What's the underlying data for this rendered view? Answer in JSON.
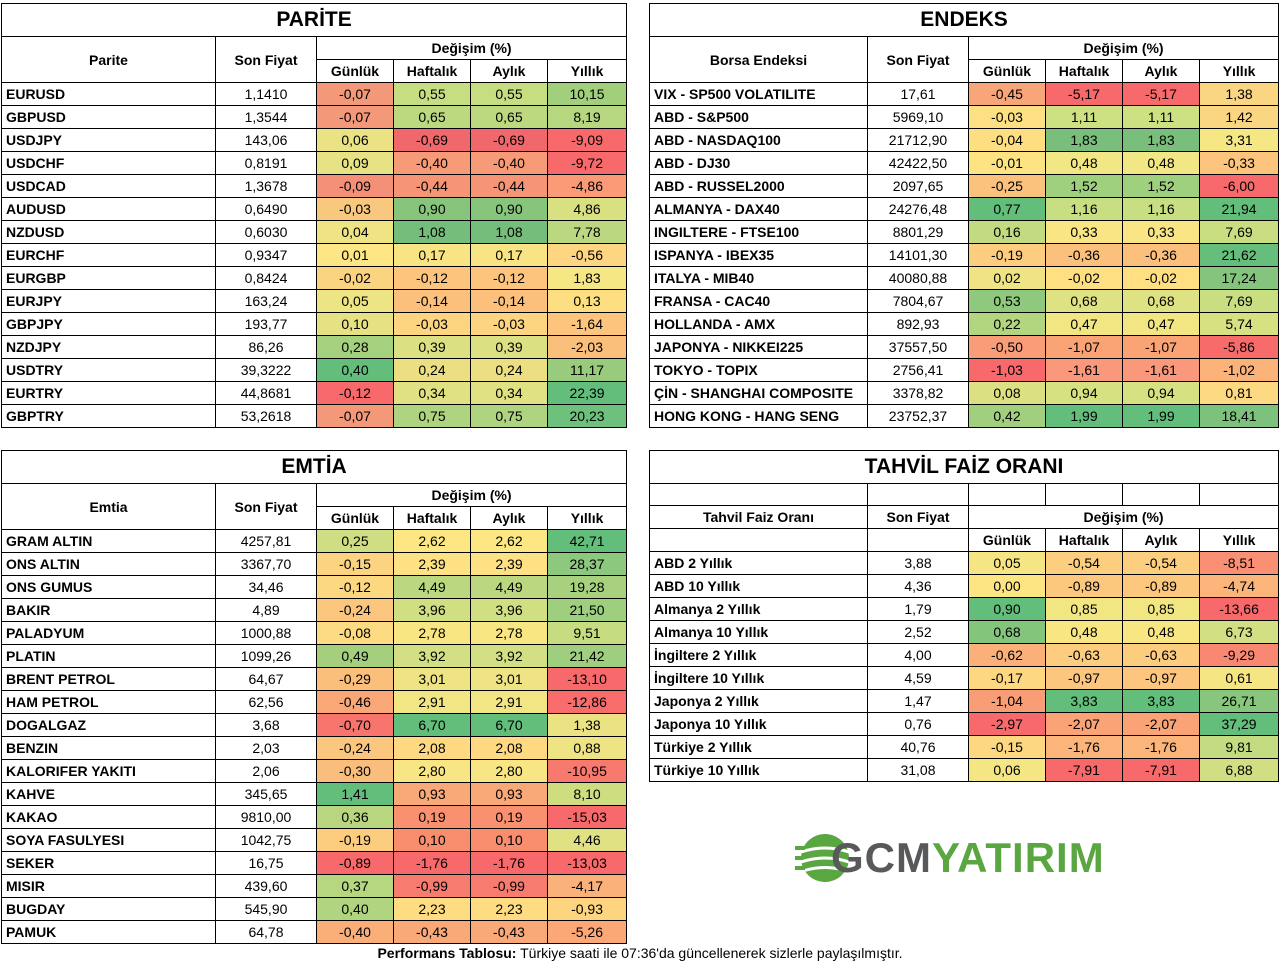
{
  "parite": {
    "title": "PARİTE",
    "col_name": "Parite",
    "col_price": "Son Fiyat",
    "col_change": "Değişim (%)",
    "periods": [
      "Günlük",
      "Haftalık",
      "Aylık",
      "Yıllık"
    ],
    "rows": [
      {
        "name": "EURUSD",
        "price": "1,1410",
        "d": "-0,07",
        "w": "0,55",
        "m": "0,55",
        "y": "10,15",
        "c": [
          "#f4987a",
          "#c7dd81",
          "#c7dd81",
          "#a2cf7b"
        ]
      },
      {
        "name": "GBPUSD",
        "price": "1,3544",
        "d": "-0,07",
        "w": "0,65",
        "m": "0,65",
        "y": "8,19",
        "c": [
          "#f4987a",
          "#bcd980",
          "#bcd980",
          "#b6d77f"
        ]
      },
      {
        "name": "USDJPY",
        "price": "143,06",
        "d": "0,06",
        "w": "-0,69",
        "m": "-0,69",
        "y": "-9,09",
        "c": [
          "#ebe383",
          "#f1686c",
          "#f1686c",
          "#f8696b"
        ]
      },
      {
        "name": "USDCHF",
        "price": "0,8191",
        "d": "0,09",
        "w": "-0,40",
        "m": "-0,40",
        "y": "-9,72",
        "c": [
          "#e7e283",
          "#f79a77",
          "#f79a77",
          "#f8696b"
        ]
      },
      {
        "name": "USDCAD",
        "price": "1,3678",
        "d": "-0,09",
        "w": "-0,44",
        "m": "-0,44",
        "y": "-4,86",
        "c": [
          "#f48f78",
          "#f69476",
          "#f69476",
          "#fa9a76"
        ]
      },
      {
        "name": "AUDUSD",
        "price": "0,6490",
        "d": "-0,03",
        "w": "0,90",
        "m": "0,90",
        "y": "4,86",
        "c": [
          "#f9c87f",
          "#88c57c",
          "#88c57c",
          "#d8e082"
        ]
      },
      {
        "name": "NZDUSD",
        "price": "0,6030",
        "d": "0,04",
        "w": "1,08",
        "m": "1,08",
        "y": "7,78",
        "c": [
          "#eee483",
          "#74bd7a",
          "#74bd7a",
          "#bbd880"
        ]
      },
      {
        "name": "EURCHF",
        "price": "0,9347",
        "d": "0,01",
        "w": "0,17",
        "m": "0,17",
        "y": "-0,56",
        "c": [
          "#fde784",
          "#f9e483",
          "#f9e483",
          "#fed580"
        ]
      },
      {
        "name": "EURGBP",
        "price": "0,8424",
        "d": "-0,02",
        "w": "-0,12",
        "m": "-0,12",
        "y": "1,83",
        "c": [
          "#fbd481",
          "#fcc47d",
          "#fcc47d",
          "#f5e783"
        ]
      },
      {
        "name": "EURJPY",
        "price": "163,24",
        "d": "0,05",
        "w": "-0,14",
        "m": "-0,14",
        "y": "0,13",
        "c": [
          "#ede483",
          "#fbc07c",
          "#fbc07c",
          "#fddf82"
        ]
      },
      {
        "name": "GBPJPY",
        "price": "193,77",
        "d": "0,10",
        "w": "-0,03",
        "m": "-0,03",
        "y": "-1,64",
        "c": [
          "#e6e283",
          "#fdd480",
          "#fdd480",
          "#fcc47d"
        ]
      },
      {
        "name": "NZDJPY",
        "price": "86,26",
        "d": "0,28",
        "w": "0,39",
        "m": "0,39",
        "y": "-2,03",
        "c": [
          "#a5d07e",
          "#dbe182",
          "#dbe182",
          "#fbbf7c"
        ]
      },
      {
        "name": "USDTRY",
        "price": "39,3222",
        "d": "0,40",
        "w": "0,24",
        "m": "0,24",
        "y": "11,17",
        "c": [
          "#63be7b",
          "#ecdf82",
          "#ecdf82",
          "#98cc7c"
        ]
      },
      {
        "name": "EURTRY",
        "price": "44,8681",
        "d": "-0,12",
        "w": "0,34",
        "m": "0,34",
        "y": "22,39",
        "c": [
          "#f8696b",
          "#e0e182",
          "#e0e182",
          "#63be7b"
        ]
      },
      {
        "name": "GBPTRY",
        "price": "53,2618",
        "d": "-0,07",
        "w": "0,75",
        "m": "0,75",
        "y": "20,23",
        "c": [
          "#f4987a",
          "#afd47f",
          "#afd47f",
          "#6dc17c"
        ]
      }
    ]
  },
  "endeks": {
    "title": "ENDEKS",
    "col_name": "Borsa Endeksi",
    "col_price": "Son Fiyat",
    "col_change": "Değişim (%)",
    "periods": [
      "Günlük",
      "Haftalık",
      "Aylık",
      "Yıllık"
    ],
    "rows": [
      {
        "name": "VIX  - SP500 VOLATILITE",
        "price": "17,61",
        "d": "-0,45",
        "w": "-5,17",
        "m": "-5,17",
        "y": "1,38",
        "c": [
          "#f8a679",
          "#f8696b",
          "#f8696b",
          "#fbd682"
        ]
      },
      {
        "name": "ABD - S&P500",
        "price": "5969,10",
        "d": "-0,03",
        "w": "1,11",
        "m": "1,11",
        "y": "1,42",
        "c": [
          "#fde083",
          "#cde082",
          "#cde082",
          "#fbd682"
        ]
      },
      {
        "name": "ABD - NASDAQ100",
        "price": "21712,90",
        "d": "-0,04",
        "w": "1,83",
        "m": "1,83",
        "y": "3,31",
        "c": [
          "#fddf82",
          "#79bf7b",
          "#79bf7b",
          "#f5e784"
        ]
      },
      {
        "name": "ABD - DJ30",
        "price": "42422,50",
        "d": "-0,01",
        "w": "0,48",
        "m": "0,48",
        "y": "-0,33",
        "c": [
          "#fee383",
          "#f1e784",
          "#f1e784",
          "#fcc47d"
        ]
      },
      {
        "name": "ABD - RUSSEL2000",
        "price": "2097,65",
        "d": "-0,25",
        "w": "1,52",
        "m": "1,52",
        "y": "-6,00",
        "c": [
          "#fbc27d",
          "#9fd07e",
          "#9fd07e",
          "#f8696b"
        ]
      },
      {
        "name": "ALMANYA - DAX40",
        "price": "24276,48",
        "d": "0,77",
        "w": "1,16",
        "m": "1,16",
        "y": "21,94",
        "c": [
          "#63be7b",
          "#c7de82",
          "#c7de82",
          "#63be7b"
        ]
      },
      {
        "name": "INGILTERE - FTSE100",
        "price": "8801,29",
        "d": "0,16",
        "w": "0,33",
        "m": "0,33",
        "y": "7,69",
        "c": [
          "#c2db80",
          "#f9e583",
          "#f9e583",
          "#c9dd81"
        ]
      },
      {
        "name": "ISPANYA - IBEX35",
        "price": "14101,30",
        "d": "-0,19",
        "w": "-0,36",
        "m": "-0,36",
        "y": "21,62",
        "c": [
          "#fccd7f",
          "#fbc07c",
          "#fbc07c",
          "#65be7b"
        ]
      },
      {
        "name": "ITALYA - MIB40",
        "price": "40080,88",
        "d": "0,02",
        "w": "-0,02",
        "m": "-0,02",
        "y": "17,24",
        "c": [
          "#f0e384",
          "#fee082",
          "#fee082",
          "#84c47c"
        ]
      },
      {
        "name": "FRANSA - CAC40",
        "price": "7804,67",
        "d": "0,53",
        "w": "0,68",
        "m": "0,68",
        "y": "7,69",
        "c": [
          "#8ec97d",
          "#dee283",
          "#dee283",
          "#c9dd81"
        ]
      },
      {
        "name": "HOLLANDA - AMX",
        "price": "892,93",
        "d": "0,22",
        "w": "0,47",
        "m": "0,47",
        "y": "5,74",
        "c": [
          "#b2d57f",
          "#f2e683",
          "#f2e683",
          "#d8e182"
        ]
      },
      {
        "name": "JAPONYA - NIKKEI225",
        "price": "37557,50",
        "d": "-0,50",
        "w": "-1,07",
        "m": "-1,07",
        "y": "-5,86",
        "c": [
          "#f89d77",
          "#faa476",
          "#faa476",
          "#f86b6b"
        ]
      },
      {
        "name": "TOKYO - TOPIX",
        "price": "2756,41",
        "d": "-1,03",
        "w": "-1,61",
        "m": "-1,61",
        "y": "-1,02",
        "c": [
          "#f8696b",
          "#f9987a",
          "#f9987a",
          "#fbb37a"
        ]
      },
      {
        "name": "ÇİN - SHANGHAI COMPOSITE",
        "price": "3378,82",
        "d": "0,08",
        "w": "0,94",
        "m": "0,94",
        "y": "0,81",
        "c": [
          "#dbe182",
          "#d6e182",
          "#d6e182",
          "#fdd981"
        ]
      },
      {
        "name": "HONG KONG - HANG SENG",
        "price": "23752,37",
        "d": "0,42",
        "w": "1,99",
        "m": "1,99",
        "y": "18,41",
        "c": [
          "#a1cf7e",
          "#63be7b",
          "#63be7b",
          "#7dc27c"
        ]
      }
    ]
  },
  "emtia": {
    "title": "EMTİA",
    "col_name": "Emtia",
    "col_price": "Son Fiyat",
    "col_change": "Değişim (%)",
    "periods": [
      "Günlük",
      "Haftalık",
      "Aylık",
      "Yıllık"
    ],
    "rows": [
      {
        "name": "GRAM ALTIN",
        "price": "4257,81",
        "d": "0,25",
        "w": "2,62",
        "m": "2,62",
        "y": "42,71",
        "c": [
          "#cfde82",
          "#fde783",
          "#fde783",
          "#63be7b"
        ]
      },
      {
        "name": "ONS ALTIN",
        "price": "3367,70",
        "d": "-0,15",
        "w": "2,39",
        "m": "2,39",
        "y": "28,37",
        "c": [
          "#fbd381",
          "#fde183",
          "#fde183",
          "#8cc87d"
        ]
      },
      {
        "name": "ONS GUMUS",
        "price": "34,46",
        "d": "-0,12",
        "w": "4,49",
        "m": "4,49",
        "y": "19,28",
        "c": [
          "#fcd881",
          "#bbd880",
          "#bbd880",
          "#a7d17e"
        ]
      },
      {
        "name": "BAKIR",
        "price": "4,89",
        "d": "-0,24",
        "w": "3,96",
        "m": "3,96",
        "y": "21,50",
        "c": [
          "#fbc67d",
          "#d0df82",
          "#d0df82",
          "#9ecf7e"
        ]
      },
      {
        "name": "PALADYUM",
        "price": "1000,88",
        "d": "-0,08",
        "w": "2,78",
        "m": "2,78",
        "y": "9,51",
        "c": [
          "#fddb82",
          "#f8e683",
          "#f8e683",
          "#c6dc81"
        ]
      },
      {
        "name": "PLATIN",
        "price": "1099,26",
        "d": "0,49",
        "w": "3,92",
        "m": "3,92",
        "y": "21,42",
        "c": [
          "#a4d07e",
          "#d2df82",
          "#d2df82",
          "#9fcf7e"
        ]
      },
      {
        "name": "BRENT PETROL",
        "price": "64,67",
        "d": "-0,29",
        "w": "3,01",
        "m": "3,01",
        "y": "-13,10",
        "c": [
          "#fbbf7c",
          "#eee483",
          "#eee483",
          "#f8696b"
        ]
      },
      {
        "name": "HAM PETROL",
        "price": "62,56",
        "d": "-0,46",
        "w": "2,91",
        "m": "2,91",
        "y": "-12,86",
        "c": [
          "#f9a777",
          "#f2e583",
          "#f2e583",
          "#f86c6c"
        ]
      },
      {
        "name": "DOGALGAZ",
        "price": "3,68",
        "d": "-0,70",
        "w": "6,70",
        "m": "6,70",
        "y": "1,38",
        "c": [
          "#f8756e",
          "#63be7b",
          "#63be7b",
          "#ebe283"
        ]
      },
      {
        "name": "BENZIN",
        "price": "2,03",
        "d": "-0,24",
        "w": "2,08",
        "m": "2,08",
        "y": "0,88",
        "c": [
          "#fbc67d",
          "#fed981",
          "#fed981",
          "#efe483"
        ]
      },
      {
        "name": "KALORIFER YAKITI",
        "price": "2,06",
        "d": "-0,30",
        "w": "2,80",
        "m": "2,80",
        "y": "-10,95",
        "c": [
          "#fabe7c",
          "#f7e683",
          "#f7e683",
          "#f87a6e"
        ]
      },
      {
        "name": "KAHVE",
        "price": "345,65",
        "d": "1,41",
        "w": "0,93",
        "m": "0,93",
        "y": "8,10",
        "c": [
          "#63be7b",
          "#f9a878",
          "#f9a878",
          "#cfdd81"
        ]
      },
      {
        "name": "KAKAO",
        "price": "9810,00",
        "d": "0,36",
        "w": "0,19",
        "m": "0,19",
        "y": "-15,03",
        "c": [
          "#b8d67f",
          "#f9906f",
          "#f9906f",
          "#f8696b"
        ]
      },
      {
        "name": "SOYA FASULYESI",
        "price": "1042,75",
        "d": "-0,19",
        "w": "0,10",
        "m": "0,10",
        "y": "4,46",
        "c": [
          "#fccd7f",
          "#f98e6f",
          "#f98e6f",
          "#dfe182"
        ]
      },
      {
        "name": "SEKER",
        "price": "16,75",
        "d": "-0,89",
        "w": "-1,76",
        "m": "-1,76",
        "y": "-13,03",
        "c": [
          "#f8696b",
          "#f8696b",
          "#f8696b",
          "#f8696b"
        ]
      },
      {
        "name": "MISIR",
        "price": "439,60",
        "d": "0,37",
        "w": "-0,99",
        "m": "-0,99",
        "y": "-4,17",
        "c": [
          "#b6d67f",
          "#f87b6f",
          "#f87b6f",
          "#fbb27a"
        ]
      },
      {
        "name": "BUGDAY",
        "price": "545,90",
        "d": "0,40",
        "w": "2,23",
        "m": "2,23",
        "y": "-0,93",
        "c": [
          "#b0d47f",
          "#fedd82",
          "#fedd82",
          "#fdd580"
        ]
      },
      {
        "name": "PAMUK",
        "price": "64,78",
        "d": "-0,40",
        "w": "-0,43",
        "m": "-0,43",
        "y": "-5,26",
        "c": [
          "#faaf79",
          "#f9a878",
          "#f9a878",
          "#fba876"
        ]
      }
    ]
  },
  "tahvil": {
    "title": "TAHVİL FAİZ ORANI",
    "col_name": "Tahvil Faiz Oranı",
    "col_price": "Son Fiyat",
    "col_change": "Değişim (%)",
    "periods": [
      "Günlük",
      "Haftalık",
      "Aylık",
      "Yıllık"
    ],
    "rows": [
      {
        "name": "ABD 2 Yıllık",
        "price": "3,88",
        "d": "0,05",
        "w": "-0,54",
        "m": "-0,54",
        "y": "-8,51",
        "c": [
          "#f6e683",
          "#fcce7f",
          "#fcce7f",
          "#f99074"
        ]
      },
      {
        "name": "ABD 10 Yıllık",
        "price": "4,36",
        "d": "0,00",
        "w": "-0,89",
        "m": "-0,89",
        "y": "-4,74",
        "c": [
          "#fee583",
          "#fcc87e",
          "#fcc87e",
          "#fbb47a"
        ]
      },
      {
        "name": "Almanya 2 Yıllık",
        "price": "1,79",
        "d": "0,90",
        "w": "0,85",
        "m": "0,85",
        "y": "-13,66",
        "c": [
          "#63be7b",
          "#f2e683",
          "#f2e683",
          "#f8696b"
        ]
      },
      {
        "name": "Almanya 10 Yıllık",
        "price": "2,52",
        "d": "0,68",
        "w": "0,48",
        "m": "0,48",
        "y": "6,73",
        "c": [
          "#84c57c",
          "#f8e683",
          "#f8e683",
          "#d2df82"
        ]
      },
      {
        "name": "İngiltere 2 Yıllık",
        "price": "4,00",
        "d": "-0,62",
        "w": "-0,63",
        "m": "-0,63",
        "y": "-9,29",
        "c": [
          "#fbaf79",
          "#fccc7f",
          "#fccc7f",
          "#f98873"
        ]
      },
      {
        "name": "İngiltere 10 Yıllık",
        "price": "4,59",
        "d": "-0,17",
        "w": "-0,97",
        "m": "-0,97",
        "y": "0,61",
        "c": [
          "#fdd881",
          "#fcc67e",
          "#fcc67e",
          "#f5e683"
        ]
      },
      {
        "name": "Japonya 2 Yıllık",
        "price": "1,47",
        "d": "-1,04",
        "w": "3,83",
        "m": "3,83",
        "y": "26,71",
        "c": [
          "#f99d76",
          "#63be7b",
          "#63be7b",
          "#87c67c"
        ]
      },
      {
        "name": "Japonya 10 Yıllık",
        "price": "0,76",
        "d": "-2,97",
        "w": "-2,07",
        "m": "-2,07",
        "y": "37,29",
        "c": [
          "#f8696b",
          "#f9a376",
          "#f9a376",
          "#63be7b"
        ]
      },
      {
        "name": "Türkiye 2 Yıllık",
        "price": "40,76",
        "d": "-0,15",
        "w": "-1,76",
        "m": "-1,76",
        "y": "9,81",
        "c": [
          "#fdd881",
          "#fbb47a",
          "#fbb47a",
          "#c3db81"
        ]
      },
      {
        "name": "Türkiye 10 Yıllık",
        "price": "31,08",
        "d": "0,06",
        "w": "-7,91",
        "m": "-7,91",
        "y": "6,88",
        "c": [
          "#f4e683",
          "#f8696b",
          "#f8696b",
          "#d1df82"
        ]
      }
    ]
  },
  "logo": {
    "part1": "GCM",
    "part2": "YATIRIM",
    "color1": "#58595b",
    "color2": "#5aa641"
  },
  "footer": {
    "label": "Performans Tablosu:",
    "text": " Türkiye saati ile 07:36'da güncellenerek sizlerle paylaşılmıştır."
  }
}
